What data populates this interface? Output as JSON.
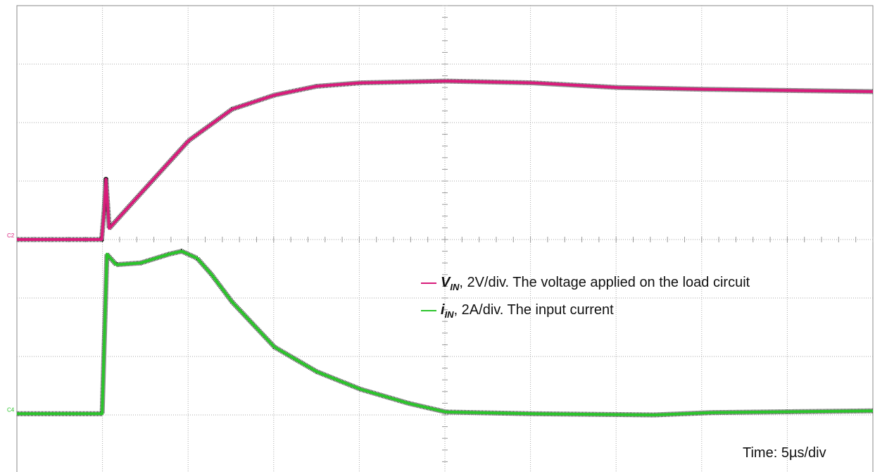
{
  "chart_data": {
    "type": "line",
    "xlim": [
      0,
      50
    ],
    "ylim": [
      -4,
      4
    ],
    "grid": true,
    "time_label": "Time: 5µs/div",
    "series": [
      {
        "name": "V",
        "name_subscript": "IN",
        "description": ", 2V/div. The voltage applied on the load circuit",
        "channel": "C2",
        "color": "#d81b7a",
        "x": [
          0,
          4.95,
          5.1,
          5.2,
          5.3,
          5.39,
          7.24,
          10.03,
          12.58,
          15.05,
          17.5,
          20.07,
          25.08,
          30.1,
          35.1,
          40.1,
          45.1,
          50
        ],
        "values": [
          0,
          0,
          0.5,
          1.03,
          0.6,
          0.19,
          0.79,
          1.69,
          2.23,
          2.47,
          2.62,
          2.68,
          2.71,
          2.68,
          2.6,
          2.57,
          2.55,
          2.53
        ]
      },
      {
        "name": "i",
        "name_subscript": "IN",
        "description": ", 2A/div. The input current",
        "channel": "C4",
        "color": "#2bc42b",
        "x": [
          0,
          4.98,
          5.26,
          5.8,
          7.24,
          8.88,
          9.62,
          10.53,
          11.35,
          12.58,
          15.05,
          17.52,
          20.07,
          22.86,
          25.08,
          30.1,
          37.25,
          40.54,
          50
        ],
        "values": [
          -2.98,
          -2.98,
          -0.25,
          -0.43,
          -0.4,
          -0.25,
          -0.2,
          -0.32,
          -0.59,
          -1.07,
          -1.84,
          -2.26,
          -2.56,
          -2.8,
          -2.95,
          -2.98,
          -3.0,
          -2.96,
          -2.93
        ]
      }
    ]
  }
}
